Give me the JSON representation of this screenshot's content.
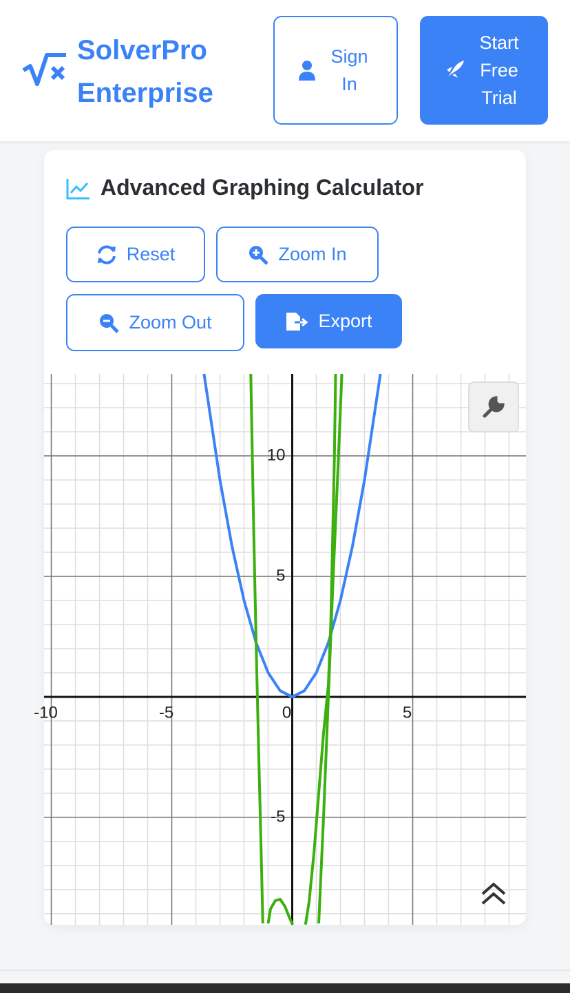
{
  "header": {
    "brand": [
      "SolverPro",
      "Enterprise"
    ],
    "sign_in": "Sign In",
    "trial": "Start Free Trial"
  },
  "card": {
    "title": "Advanced Graphing Calculator",
    "buttons": [
      "Reset",
      "Zoom In",
      "Zoom Out",
      "Export"
    ]
  },
  "graph": {
    "type": "line",
    "xlim": [
      -10.3,
      9.7
    ],
    "ylim": [
      -9.46,
      13.4
    ],
    "xticks": [
      -10,
      -5,
      0,
      5
    ],
    "yticks": [
      -5,
      5,
      10
    ],
    "grid": true,
    "series": [
      {
        "color": "#3b82f6",
        "x": [
          -3.66,
          -3,
          -2.5,
          -2,
          -1.5,
          -1,
          -0.5,
          0,
          0.5,
          1,
          1.5,
          2,
          2.5,
          3,
          3.66
        ],
        "values": [
          13.4,
          9,
          6.25,
          4,
          2.25,
          1,
          0.25,
          0,
          0.25,
          1,
          2.25,
          4,
          6.25,
          9,
          13.4
        ]
      },
      {
        "color": "#3cb00f",
        "x": [
          -1.72,
          -1.6,
          -1.5,
          -1.4,
          -1.3,
          -1.22,
          null,
          -1.0,
          -0.9,
          -0.7,
          -0.5,
          -0.3,
          -0.1,
          0.02,
          null,
          0.55,
          0.7,
          0.9,
          1.1,
          1.3,
          1.5,
          1.6,
          1.75,
          1.8
        ],
        "values": [
          13.4,
          7,
          2.3,
          -2,
          -6,
          -9.4,
          null,
          -9.4,
          -8.8,
          -8.45,
          -8.4,
          -8.7,
          -9.2,
          -9.45,
          null,
          -9.45,
          -8.5,
          -6.5,
          -4,
          -1.5,
          0.5,
          3,
          10,
          13.4
        ]
      },
      {
        "color": "#3cb00f",
        "x": [
          1.1,
          1.3,
          1.5,
          1.7,
          1.9,
          2.06
        ],
        "values": [
          -9.4,
          -5,
          0,
          5,
          9.5,
          13.4
        ]
      }
    ]
  }
}
